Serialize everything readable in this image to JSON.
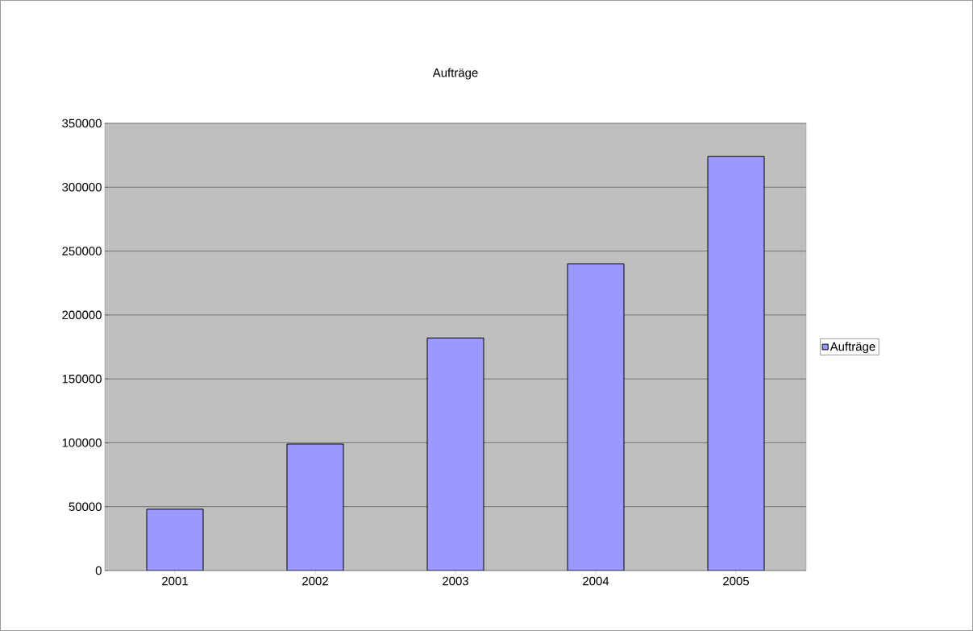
{
  "chart_data": {
    "type": "bar",
    "title": "Aufträge",
    "categories": [
      "2001",
      "2002",
      "2003",
      "2004",
      "2005"
    ],
    "series": [
      {
        "name": "Aufträge",
        "color": "#9999ff",
        "values": [
          48000,
          99000,
          182000,
          240000,
          324000
        ]
      }
    ],
    "ylim": [
      0,
      350000
    ],
    "yticks": [
      0,
      50000,
      100000,
      150000,
      200000,
      250000,
      300000,
      350000
    ],
    "grid": "y",
    "legend": "right"
  }
}
